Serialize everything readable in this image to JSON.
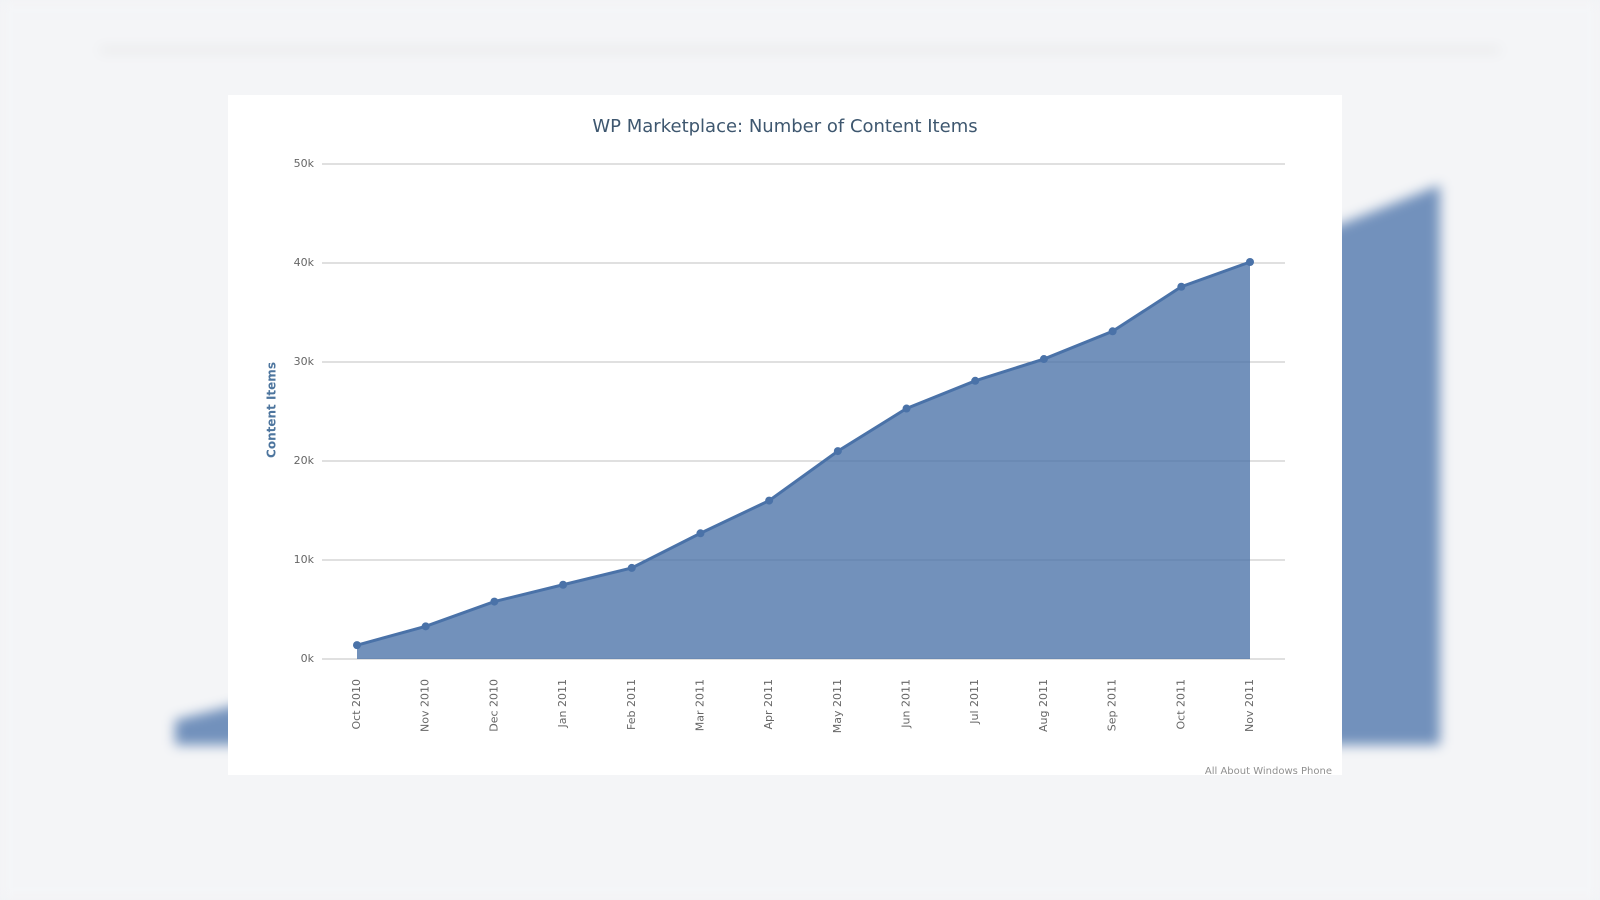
{
  "chart_data": {
    "type": "area",
    "title": "WP Marketplace: Number of Content Items",
    "y_label": "Content Items",
    "credit": "All About Windows Phone",
    "categories": [
      "Oct 2010",
      "Nov 2010",
      "Dec 2010",
      "Jan 2011",
      "Feb 2011",
      "Mar 2011",
      "Apr 2011",
      "May 2011",
      "Jun 2011",
      "Jul 2011",
      "Aug 2011",
      "Sep 2011",
      "Oct 2011",
      "Nov 2011"
    ],
    "series": [
      {
        "name": "Content Items",
        "color": "#4a72a8",
        "values": [
          1400,
          3300,
          5800,
          7500,
          9200,
          12700,
          16000,
          21000,
          25300,
          28100,
          30300,
          33100,
          37600,
          40100
        ]
      }
    ],
    "ylim": [
      0,
      50000
    ],
    "yticks": [
      {
        "value": 0,
        "label": "0k"
      },
      {
        "value": 10000,
        "label": "10k"
      },
      {
        "value": 20000,
        "label": "20k"
      },
      {
        "value": 30000,
        "label": "30k"
      },
      {
        "value": 40000,
        "label": "40k"
      },
      {
        "value": 50000,
        "label": "50k"
      }
    ],
    "grid": true
  }
}
